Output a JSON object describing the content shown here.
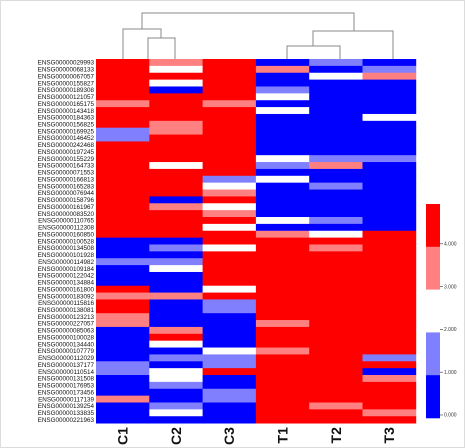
{
  "chart_data": {
    "type": "heatmap",
    "title": "",
    "xlabel": "",
    "ylabel": "",
    "columns": [
      "C1",
      "C2",
      "C3",
      "T1",
      "T2",
      "T3"
    ],
    "rows": [
      "ENSG00000029993",
      "ENSG00000068133",
      "ENSG00000067057",
      "ENSG00000155827",
      "ENSG00000189308",
      "ENSG00000121057",
      "ENSG00000165175",
      "ENSG00000143418",
      "ENSG00000184363",
      "ENSG00000156825",
      "ENSG00000169925",
      "ENSG00000146452",
      "ENSG00000242468",
      "ENSG00000197245",
      "ENSG00000155229",
      "ENSG00000164733",
      "ENSG00000071553",
      "ENSG00000166813",
      "ENSG00000165283",
      "ENSG00000076944",
      "ENSG00000158796",
      "ENSG00000161967",
      "ENSG00000083520",
      "ENSG00000110765",
      "ENSG00000112308",
      "ENSG00000160850",
      "ENSG00000100528",
      "ENSG00000134508",
      "ENSG00000101928",
      "ENSG00000114982",
      "ENSG00000109184",
      "ENSG00000122042",
      "ENSG00000134884",
      "ENSG00000161800",
      "ENSG00000183092",
      "ENSG00000115816",
      "ENSG00000138081",
      "ENSG00000123213",
      "ENSG00000227057",
      "ENSG00000085063",
      "ENSG00000100028",
      "ENSG00000134440",
      "ENSG00000107779",
      "ENSG00000112029",
      "ENSG00000137177",
      "ENSG00000110514",
      "ENSG00000131508",
      "ENSG00000176953",
      "ENSG00000173456",
      "ENSG00000117139",
      "ENSG00000139254",
      "ENSG00000133835",
      "ENSG00000221963"
    ],
    "color_levels": [
      "#0000ff",
      "#8080ff",
      "#ffffff",
      "#ff8080",
      "#ff0000"
    ],
    "colorbar": {
      "ticks": [
        {
          "value": 0,
          "label": "0.000"
        },
        {
          "value": 1,
          "label": "1.000"
        },
        {
          "value": 2,
          "label": "2.000"
        },
        {
          "value": 3,
          "label": "3.000"
        },
        {
          "value": 4,
          "label": "4.000"
        }
      ]
    },
    "values": [
      [
        4,
        3,
        4,
        0,
        1,
        0
      ],
      [
        4,
        2,
        4,
        3,
        0,
        1
      ],
      [
        4,
        4,
        4,
        0,
        2,
        3
      ],
      [
        4,
        2,
        4,
        0,
        0,
        0
      ],
      [
        4,
        0,
        4,
        1,
        0,
        0
      ],
      [
        4,
        4,
        4,
        2,
        0,
        0
      ],
      [
        3,
        4,
        3,
        0,
        0,
        0
      ],
      [
        4,
        4,
        4,
        2,
        0,
        0
      ],
      [
        4,
        4,
        4,
        0,
        0,
        2
      ],
      [
        4,
        3,
        4,
        0,
        0,
        0
      ],
      [
        1,
        3,
        4,
        0,
        0,
        0
      ],
      [
        1,
        4,
        4,
        0,
        0,
        0
      ],
      [
        4,
        4,
        4,
        0,
        0,
        0
      ],
      [
        4,
        4,
        4,
        0,
        0,
        0
      ],
      [
        4,
        4,
        4,
        2,
        1,
        1
      ],
      [
        4,
        2,
        4,
        1,
        3,
        0
      ],
      [
        4,
        4,
        4,
        0,
        0,
        0
      ],
      [
        4,
        4,
        1,
        2,
        0,
        0
      ],
      [
        4,
        4,
        2,
        0,
        1,
        0
      ],
      [
        4,
        4,
        3,
        0,
        0,
        0
      ],
      [
        4,
        0,
        4,
        0,
        0,
        0
      ],
      [
        4,
        3,
        2,
        0,
        0,
        0
      ],
      [
        4,
        4,
        3,
        0,
        0,
        0
      ],
      [
        4,
        4,
        4,
        2,
        1,
        0
      ],
      [
        4,
        4,
        2,
        0,
        0,
        0
      ],
      [
        4,
        4,
        4,
        3,
        2,
        4
      ],
      [
        0,
        0,
        4,
        4,
        4,
        4
      ],
      [
        0,
        1,
        2,
        4,
        3,
        4
      ],
      [
        0,
        0,
        4,
        4,
        4,
        4
      ],
      [
        1,
        1,
        4,
        4,
        4,
        4
      ],
      [
        0,
        2,
        4,
        4,
        4,
        4
      ],
      [
        0,
        0,
        4,
        4,
        4,
        4
      ],
      [
        0,
        0,
        4,
        4,
        4,
        4
      ],
      [
        4,
        0,
        2,
        4,
        4,
        4
      ],
      [
        3,
        3,
        4,
        4,
        4,
        4
      ],
      [
        4,
        0,
        1,
        4,
        4,
        4
      ],
      [
        4,
        0,
        1,
        4,
        4,
        4
      ],
      [
        3,
        0,
        0,
        4,
        4,
        4
      ],
      [
        3,
        0,
        0,
        3,
        4,
        4
      ],
      [
        0,
        3,
        0,
        4,
        4,
        4
      ],
      [
        0,
        4,
        0,
        4,
        4,
        4
      ],
      [
        0,
        2,
        0,
        4,
        4,
        4
      ],
      [
        0,
        0,
        2,
        3,
        4,
        4
      ],
      [
        0,
        1,
        1,
        4,
        4,
        1
      ],
      [
        1,
        0,
        1,
        4,
        4,
        4
      ],
      [
        1,
        2,
        4,
        4,
        4,
        0
      ],
      [
        0,
        2,
        0,
        4,
        4,
        3
      ],
      [
        0,
        1,
        0,
        4,
        4,
        4
      ],
      [
        0,
        0,
        1,
        4,
        4,
        4
      ],
      [
        3,
        0,
        1,
        4,
        4,
        4
      ],
      [
        0,
        1,
        0,
        4,
        3,
        4
      ],
      [
        0,
        2,
        0,
        4,
        4,
        3
      ],
      [
        0,
        0,
        0,
        4,
        4,
        4
      ]
    ]
  }
}
